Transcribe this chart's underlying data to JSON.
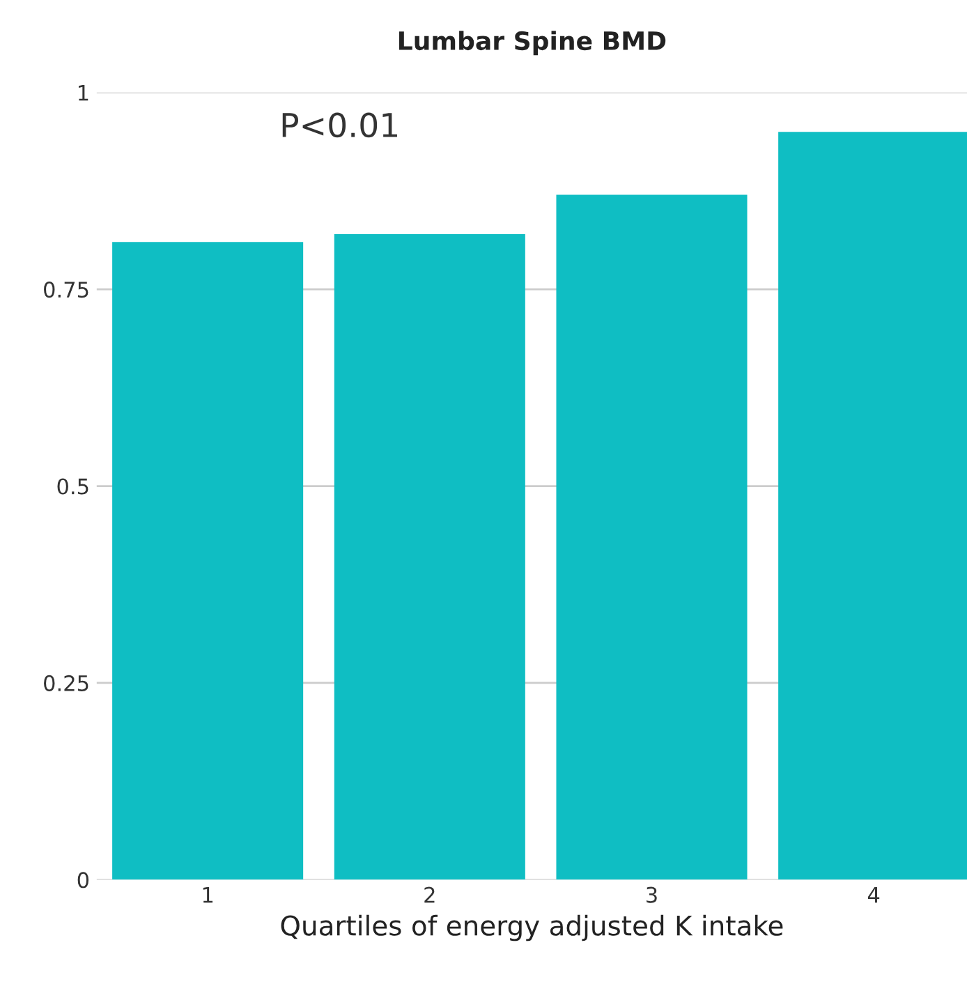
{
  "chart_data": {
    "type": "bar",
    "title": "Lumbar Spine BMD",
    "xlabel": "Quartiles of energy adjusted K intake",
    "categories": [
      "1",
      "2",
      "3",
      "4"
    ],
    "values": [
      0.81,
      0.82,
      0.87,
      0.95
    ],
    "color": "#0fbec3",
    "ylim": [
      0,
      1
    ],
    "yticks": [
      0,
      0.25,
      0.5,
      0.75,
      1
    ],
    "grid": "y",
    "annotations": [
      "P<0.01"
    ]
  }
}
